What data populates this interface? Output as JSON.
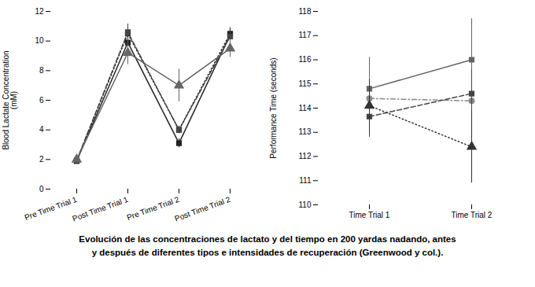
{
  "caption": "Evolución de las concentraciones de lactato y del tiempo en 200 yardas nadando, antes\ny después de diferentes tipos e intensidades de recuperación (Greenwood y col.).",
  "chart_data": [
    {
      "type": "line",
      "ylabel": "Blood Lactate Concentration\n(mM)",
      "categories": [
        "Pre Time Trial 1",
        "Post Time Trial 1",
        "Pre Time Trial 2",
        "Post Time Trial 2"
      ],
      "ylim": [
        0,
        12
      ],
      "yticks": [
        0,
        2,
        4,
        6,
        8,
        10,
        12
      ],
      "series": [
        {
          "color": "#222222",
          "marker": "square",
          "line_style": "solid",
          "values": [
            1.9,
            9.9,
            3.1,
            10.4
          ],
          "yerr": [
            0.15,
            0.5,
            0.3,
            0.35
          ]
        },
        {
          "color": "#222222",
          "marker": "square",
          "line_style": "dotted",
          "values": [
            1.9,
            10.5,
            4.0,
            10.5
          ],
          "yerr": [
            0.15,
            0.6,
            0.25,
            0.4
          ]
        },
        {
          "color": "#444444",
          "marker": "square",
          "line_style": "dashed",
          "values": [
            1.95,
            10.6,
            4.0,
            10.3
          ],
          "yerr": [
            0.12,
            0.55,
            0.2,
            0.3
          ]
        },
        {
          "color": "#666666",
          "marker": "triangle",
          "line_style": "solid",
          "values": [
            2.0,
            9.2,
            7.0,
            9.5
          ],
          "yerr": [
            0.15,
            0.8,
            1.1,
            0.6
          ]
        }
      ]
    },
    {
      "type": "line",
      "ylabel": "Performance Time (seconds)",
      "categories": [
        "Time Trial 1",
        "Time Trial 2"
      ],
      "ylim": [
        110,
        118
      ],
      "yticks": [
        110,
        111,
        112,
        113,
        114,
        115,
        116,
        117,
        118
      ],
      "series": [
        {
          "color": "#666666",
          "marker": "square",
          "line_style": "solid",
          "values": [
            114.8,
            116.0
          ],
          "yerr": [
            1.3,
            1.7
          ]
        },
        {
          "color": "#888888",
          "marker": "circle",
          "line_style": "dashdot",
          "values": [
            114.4,
            114.3
          ],
          "yerr": [
            0.9,
            1.0
          ]
        },
        {
          "color": "#444444",
          "marker": "square",
          "line_style": "dashed",
          "values": [
            113.65,
            114.6
          ],
          "yerr": [
            0.85,
            1.0
          ]
        },
        {
          "color": "#333333",
          "marker": "triangle",
          "line_style": "dotted",
          "values": [
            114.1,
            112.4
          ],
          "yerr": [
            1.1,
            1.5
          ]
        }
      ]
    }
  ]
}
